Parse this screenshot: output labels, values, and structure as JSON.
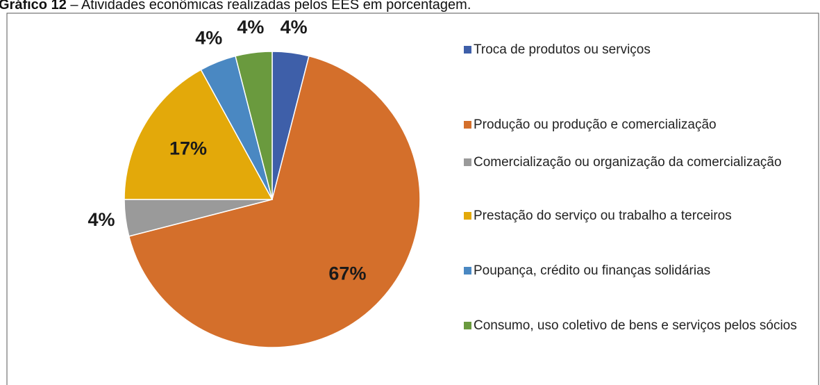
{
  "chart_data": {
    "type": "pie",
    "figure_label": "Gráfico 12",
    "title": "– Atividades econômicas realizadas pelos EES em porcentagem.",
    "categories": [
      "Troca de produtos ou serviços",
      "Produção ou produção e comercialização",
      "Comercialização ou organização da comercialização",
      "Prestação do serviço ou trabalho a terceiros",
      "Poupança, crédito ou finanças solidárias",
      "Consumo, uso coletivo de bens e serviços pelos sócios"
    ],
    "values": [
      4,
      67,
      4,
      17,
      4,
      4
    ],
    "value_labels": [
      "4%",
      "67%",
      "4%",
      "17%",
      "4%",
      "4%"
    ],
    "colors": [
      "#3e5fa9",
      "#d46f2b",
      "#9a9a9a",
      "#e3a90a",
      "#4a88c2",
      "#6a9a3e"
    ],
    "legend": "right"
  }
}
